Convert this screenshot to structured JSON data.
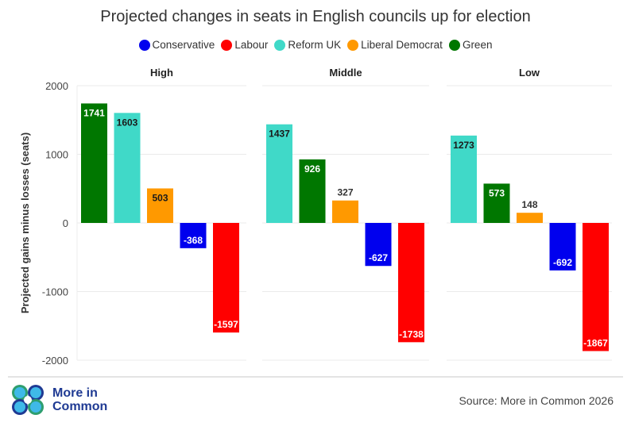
{
  "title": "Projected changes in seats in English councils up for election",
  "legend": [
    {
      "label": "Conservative",
      "color": "#0000ee"
    },
    {
      "label": "Labour",
      "color": "#ff0000"
    },
    {
      "label": "Reform UK",
      "color": "#40d9c8"
    },
    {
      "label": "Liberal Democrat",
      "color": "#ff9900"
    },
    {
      "label": "Green",
      "color": "#007700"
    }
  ],
  "footer": {
    "logo_line1": "More in",
    "logo_line2": "Common",
    "source": "Source: More in Common 2026"
  },
  "chart_data": {
    "type": "bar",
    "title": "Projected changes in seats in English councils up for election",
    "ylabel": "Projected gains minus losses (seats)",
    "xlabel": "",
    "ylim": [
      -2000,
      2000
    ],
    "yticks": [
      2000,
      1000,
      0,
      -1000,
      -2000
    ],
    "grid": true,
    "legend_position": "top",
    "party_colors": {
      "Conservative": "#0000ee",
      "Labour": "#ff0000",
      "Reform UK": "#40d9c8",
      "Liberal Democrat": "#ff9900",
      "Green": "#007700"
    },
    "label_colors": {
      "Conservative": "#ffffff",
      "Labour": "#ffffff",
      "Reform UK": "#1a1a1a",
      "Liberal Democrat": "#1a1a1a",
      "Green": "#ffffff"
    },
    "facets": [
      {
        "name": "High",
        "bars": [
          {
            "party": "Green",
            "value": 1741
          },
          {
            "party": "Reform UK",
            "value": 1603
          },
          {
            "party": "Liberal Democrat",
            "value": 503
          },
          {
            "party": "Conservative",
            "value": -368
          },
          {
            "party": "Labour",
            "value": -1597
          }
        ]
      },
      {
        "name": "Middle",
        "bars": [
          {
            "party": "Reform UK",
            "value": 1437
          },
          {
            "party": "Green",
            "value": 926
          },
          {
            "party": "Liberal Democrat",
            "value": 327
          },
          {
            "party": "Conservative",
            "value": -627
          },
          {
            "party": "Labour",
            "value": -1738
          }
        ]
      },
      {
        "name": "Low",
        "bars": [
          {
            "party": "Reform UK",
            "value": 1273
          },
          {
            "party": "Green",
            "value": 573
          },
          {
            "party": "Liberal Democrat",
            "value": 148
          },
          {
            "party": "Conservative",
            "value": -692
          },
          {
            "party": "Labour",
            "value": -1867
          }
        ]
      }
    ]
  }
}
